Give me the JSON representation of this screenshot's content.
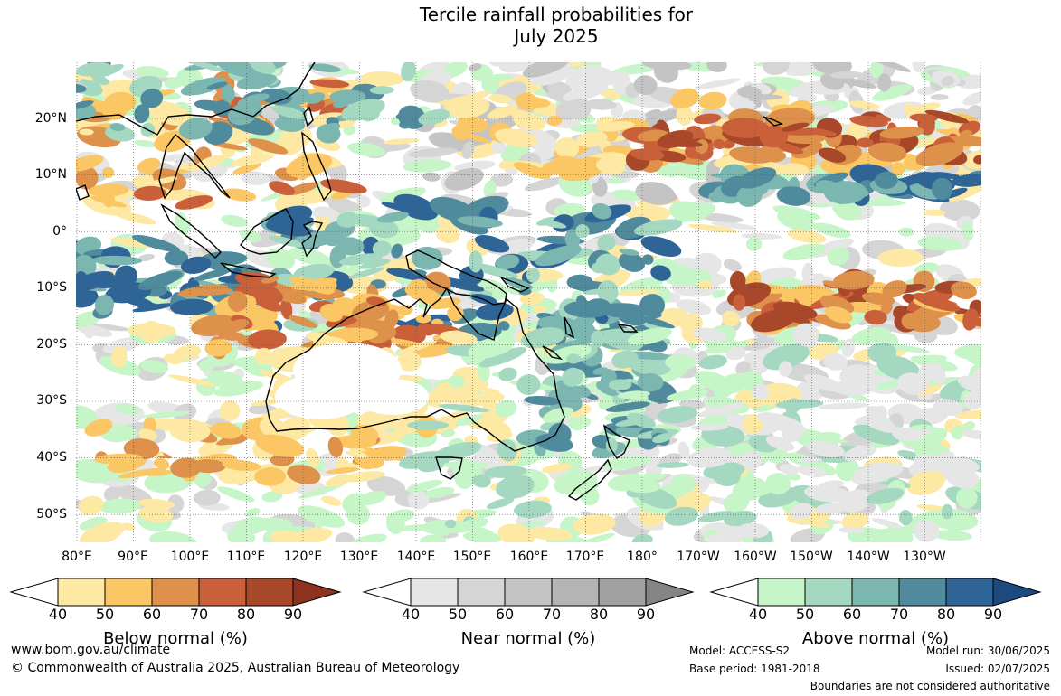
{
  "title": {
    "line1": "Tercile rainfall probabilities for",
    "line2": "July 2025"
  },
  "map": {
    "latitude_labels": [
      "20°N",
      "10°N",
      "0°",
      "10°S",
      "20°S",
      "30°S",
      "40°S",
      "50°S"
    ],
    "longitude_labels": [
      "80°E",
      "90°E",
      "100°E",
      "110°E",
      "120°E",
      "130°E",
      "140°E",
      "150°E",
      "160°E",
      "170°E",
      "180°",
      "170°W",
      "160°W",
      "150°W",
      "140°W",
      "130°W"
    ],
    "gridlines": "dotted"
  },
  "colorbars": [
    {
      "label": "Below normal (%)",
      "ticks": [
        "40",
        "50",
        "60",
        "70",
        "80",
        "90"
      ],
      "colors": [
        "#ffffff",
        "#fde9a3",
        "#fbc764",
        "#de914b",
        "#c9603a",
        "#a8472a",
        "#8c321f"
      ]
    },
    {
      "label": "Near normal (%)",
      "ticks": [
        "40",
        "50",
        "60",
        "70",
        "80",
        "90"
      ],
      "colors": [
        "#ffffff",
        "#e6e6e6",
        "#d5d5d5",
        "#c4c4c4",
        "#b4b4b4",
        "#a1a1a1",
        "#858585"
      ]
    },
    {
      "label": "Above normal (%)",
      "ticks": [
        "40",
        "50",
        "60",
        "70",
        "80",
        "90"
      ],
      "colors": [
        "#ffffff",
        "#c6f5c8",
        "#a4d8c0",
        "#7bb6b0",
        "#508a9d",
        "#2f6496",
        "#1d4a7e"
      ]
    }
  ],
  "footer": {
    "website": "www.bom.gov.au/climate",
    "copyright": "© Commonwealth of Australia 2025, Australian Bureau of Meteorology",
    "model": "Model: ACCESS-S2",
    "base_period": "Base period: 1981-2018",
    "model_run": "Model run: 30/06/2025",
    "issued": "Issued: 02/07/2025",
    "disclaimer": "Boundaries are not considered authoritative"
  }
}
